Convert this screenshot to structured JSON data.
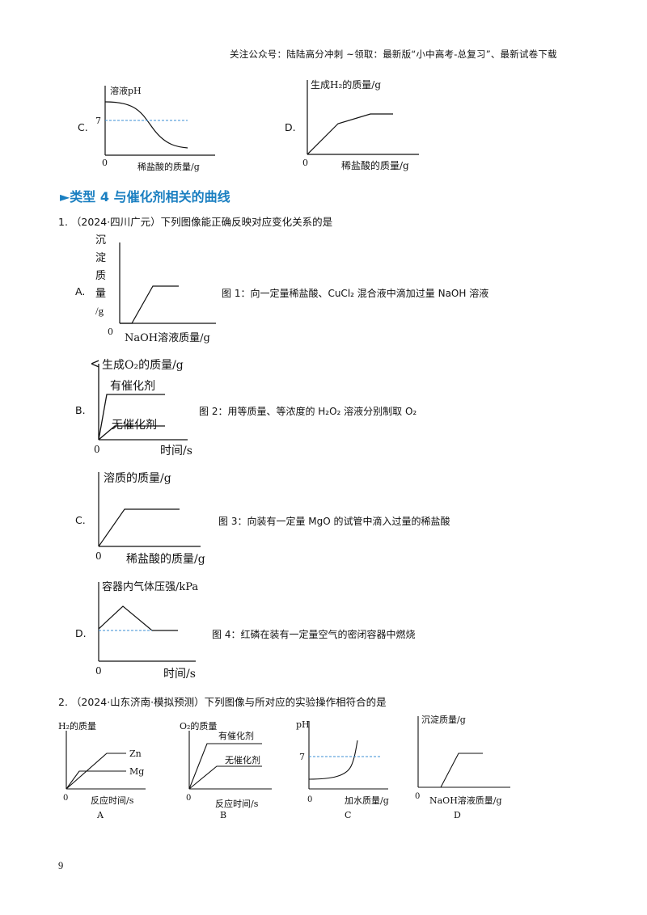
{
  "header": {
    "text": "关注公众号：陆陆高分冲刺 ~领取：最新版“小中高考-总复习”、最新试卷下载"
  },
  "top": {
    "c": {
      "letter": "C.",
      "ylabel": "溶液pH",
      "ytick": "7",
      "origin": "0",
      "xlabel": "稀盐酸的质量/g"
    },
    "d": {
      "letter": "D.",
      "ylabel": "生成H₂的质量/g",
      "origin": "0",
      "xlabel": "稀盐酸的质量/g"
    }
  },
  "section": {
    "title": "►类型 4   与催化剂相关的曲线"
  },
  "q1": {
    "stem": "1. （2024·四川广元）下列图像能正确反映对应变化关系的是",
    "options": [
      {
        "letter": "A.",
        "ylabel_lines": [
          "沉",
          "淀",
          "质",
          "量",
          "/g"
        ],
        "origin": "0",
        "xlabel": "NaOH溶液质量/g",
        "caption": "图 1：向一定量稀盐酸、CuCl₂ 混合液中滴加过量 NaOH 溶液"
      },
      {
        "letter": "B.",
        "ylabel": "生成O₂的质量/g",
        "label_high": "有催化剂",
        "label_low": "无催化剂",
        "origin": "0",
        "xlabel": "时间/s",
        "caption": "图 2：用等质量、等浓度的 H₂O₂ 溶液分别制取 O₂"
      },
      {
        "letter": "C.",
        "ylabel": "溶质的质量/g",
        "origin": "0",
        "xlabel": "稀盐酸的质量/g",
        "caption": "图 3：向装有一定量 MgO 的试管中滴入过量的稀盐酸"
      },
      {
        "letter": "D.",
        "ylabel": "容器内气体压强/kPa",
        "origin": "0",
        "xlabel": "时间/s",
        "caption": "图 4：红磷在装有一定量空气的密闭容器中燃烧"
      }
    ]
  },
  "q2": {
    "stem": "2. （2024·山东济南·模拟预测）下列图像与所对应的实验操作相符合的是",
    "charts": [
      {
        "letter": "A",
        "ylabel": "H₂的质量",
        "line1": "Zn",
        "line2": "Mg",
        "origin": "0",
        "xlabel": "反应时间/s"
      },
      {
        "letter": "B",
        "ylabel": "O₂的质量",
        "line1": "有催化剂",
        "line2": "无催化剂",
        "origin": "0",
        "xlabel": "反应时间/s"
      },
      {
        "letter": "C",
        "ylabel": "pH",
        "ytick": "7",
        "origin": "0",
        "xlabel": "加水质量/g"
      },
      {
        "letter": "D",
        "ylabel": "沉淀质量/g",
        "origin": "0",
        "xlabel": "NaOH溶液质量/g"
      }
    ]
  },
  "page_number": "9"
}
